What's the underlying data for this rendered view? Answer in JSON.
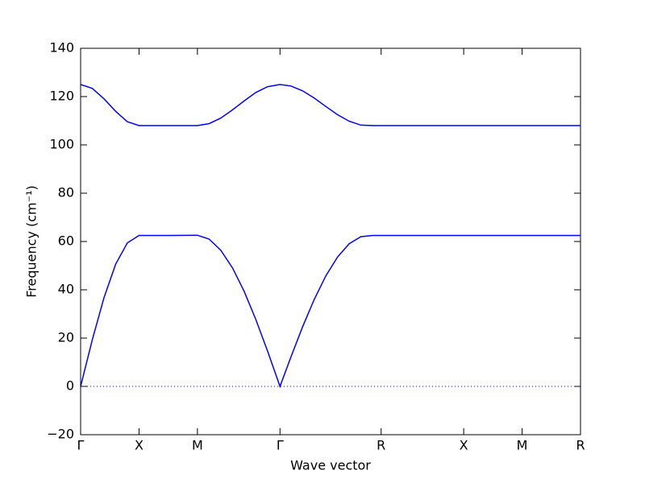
{
  "chart_data": {
    "type": "line",
    "xlabel": "Wave vector",
    "ylabel": "Frequency (cm⁻¹)",
    "x": [
      0,
      0.1,
      0.2,
      0.3,
      0.4,
      0.5,
      0.75,
      1.0,
      1.1,
      1.2,
      1.3,
      1.4,
      1.5,
      1.6,
      1.707,
      1.8,
      1.9,
      2.0,
      2.1,
      2.2,
      2.3,
      2.4,
      2.5,
      2.573,
      3.28,
      3.78,
      4.28
    ],
    "series": [
      {
        "color": "#0000ff",
        "values": [
          0,
          19.3,
          36.7,
          50.6,
          59.4,
          62.5,
          62.5,
          62.6,
          61.0,
          56.4,
          49.1,
          39.4,
          27.7,
          14.7,
          0,
          12.1,
          24.6,
          36.0,
          45.8,
          53.6,
          59.1,
          62.0,
          62.5,
          62.5,
          62.5,
          62.5,
          62.5
        ]
      },
      {
        "color": "#0000ff",
        "values": [
          125,
          123.4,
          119.1,
          113.9,
          109.6,
          108,
          108,
          108,
          108.8,
          111.1,
          114.5,
          118.2,
          121.7,
          124.1,
          125,
          124.4,
          122.4,
          119.4,
          115.9,
          112.5,
          109.8,
          108.2,
          108,
          108,
          108,
          108,
          108
        ]
      }
    ],
    "hline": {
      "value": 0,
      "color": "#0000ff",
      "style": "dotted"
    },
    "xlim": [
      0,
      4.28
    ],
    "ylim": [
      -20,
      140
    ],
    "xticks": [
      {
        "value": 0,
        "label": "Γ"
      },
      {
        "value": 0.5,
        "label": "X"
      },
      {
        "value": 1.0,
        "label": "M"
      },
      {
        "value": 1.707,
        "label": "Γ"
      },
      {
        "value": 2.573,
        "label": "R"
      },
      {
        "value": 3.28,
        "label": "X"
      },
      {
        "value": 3.78,
        "label": "M"
      },
      {
        "value": 4.28,
        "label": "R"
      }
    ],
    "yticks": [
      {
        "value": -20,
        "label": "−20"
      },
      0,
      20,
      40,
      60,
      80,
      100,
      120,
      140
    ],
    "grid": false
  }
}
